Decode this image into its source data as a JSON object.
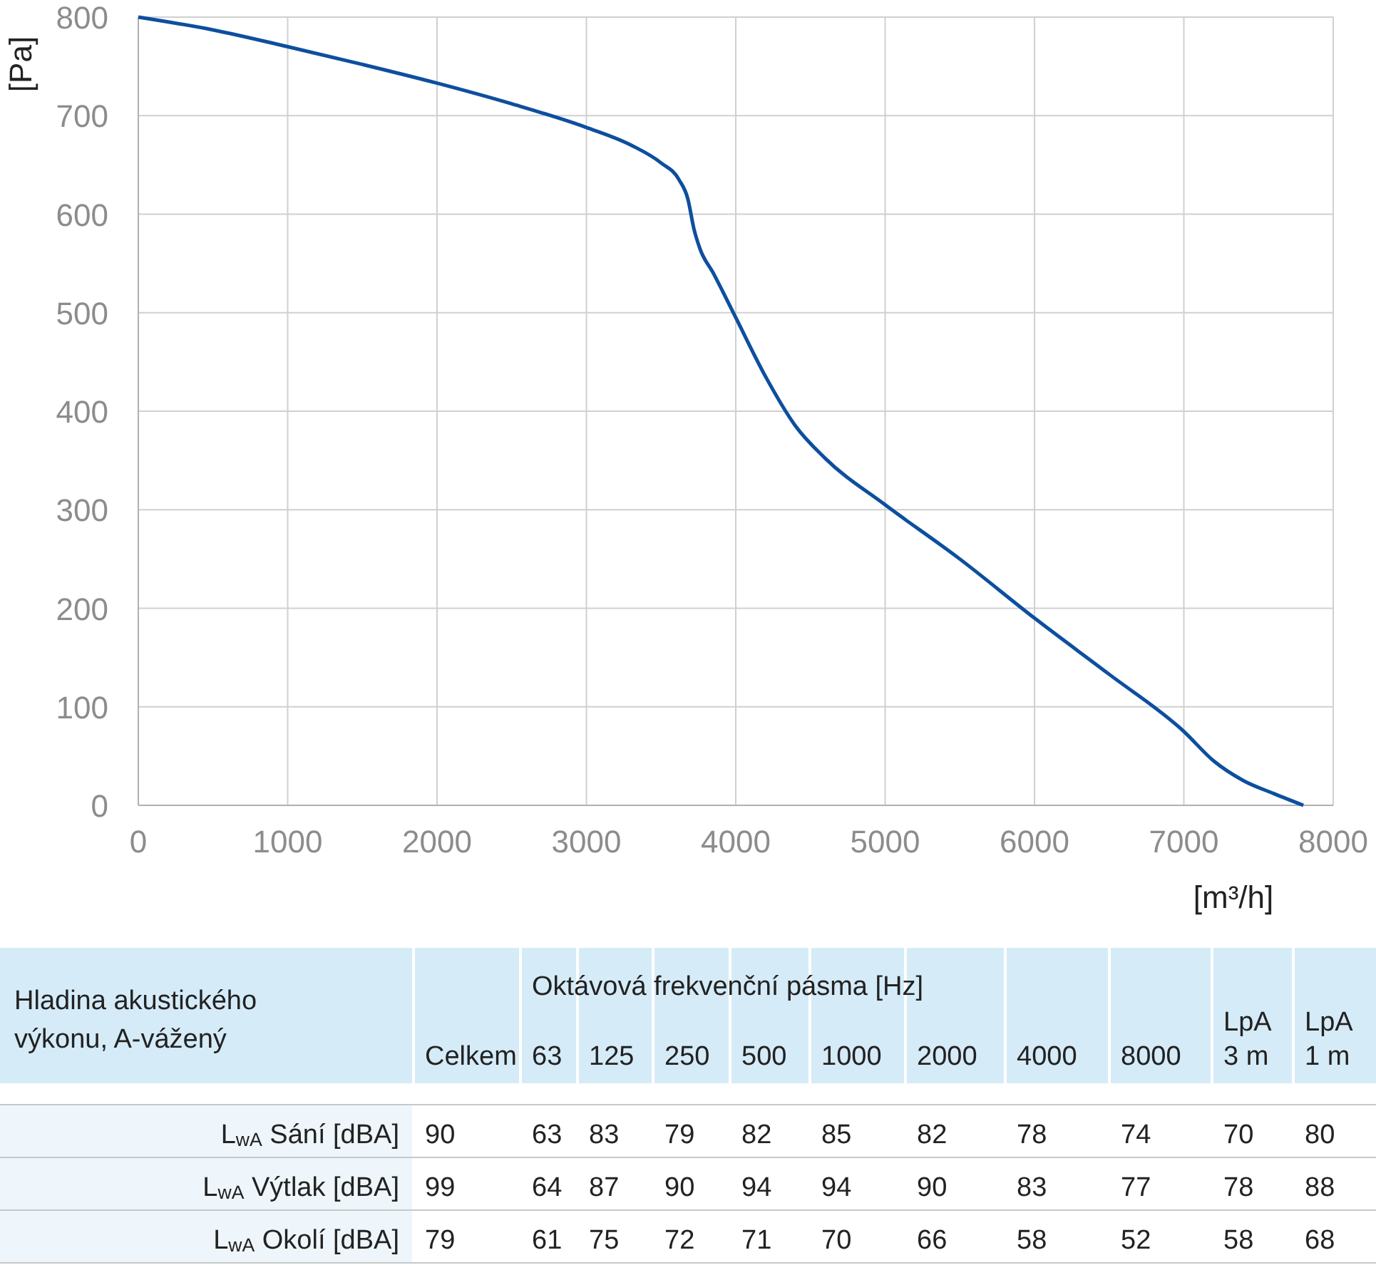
{
  "chart_data": [
    {
      "type": "line",
      "xlabel": "[m³/h]",
      "ylabel": "[Pa]",
      "xlim": [
        0,
        8000
      ],
      "ylim": [
        0,
        800
      ],
      "xticks": [
        0,
        1000,
        2000,
        3000,
        4000,
        5000,
        6000,
        7000,
        8000
      ],
      "yticks": [
        0,
        100,
        200,
        300,
        400,
        500,
        600,
        700,
        800
      ],
      "grid": true,
      "series": [
        {
          "color": "#0d4f9e",
          "x": [
            0,
            500,
            1000,
            1500,
            2000,
            2500,
            3000,
            3300,
            3500,
            3620,
            3680,
            3720,
            3760,
            3850,
            4000,
            4200,
            4400,
            4600,
            5000,
            5500,
            6000,
            6500,
            7000,
            7200,
            7400,
            7600,
            7800
          ],
          "values": [
            800,
            787,
            770,
            752,
            733,
            712,
            688,
            670,
            652,
            635,
            615,
            585,
            565,
            540,
            495,
            435,
            385,
            352,
            305,
            250,
            190,
            133,
            75,
            45,
            25,
            12,
            0
          ]
        }
      ]
    },
    {
      "type": "heatmap",
      "data_labels": true,
      "grid": true,
      "ylabel": "Hladina akustického výkonu, A-vážený",
      "xlabel": "Oktávová frekvenční pásma [Hz]",
      "categories": [
        "Celkem",
        "63",
        "125",
        "250",
        "500",
        "1000",
        "2000",
        "4000",
        "8000",
        "LpA 3 m",
        "LpA 1 m"
      ],
      "y_categories": [
        "L$_{wA}$ Sání [dBA]",
        "L$_{wA}$ Výtlak [dBA]",
        "L$_{wA}$ Okolí [dBA]"
      ],
      "cells": [
        [
          90,
          63,
          83,
          79,
          82,
          85,
          82,
          78,
          74,
          70,
          80
        ],
        [
          99,
          64,
          87,
          90,
          94,
          94,
          90,
          83,
          77,
          78,
          88
        ],
        [
          79,
          61,
          75,
          72,
          71,
          70,
          66,
          58,
          52,
          58,
          68
        ]
      ]
    }
  ]
}
